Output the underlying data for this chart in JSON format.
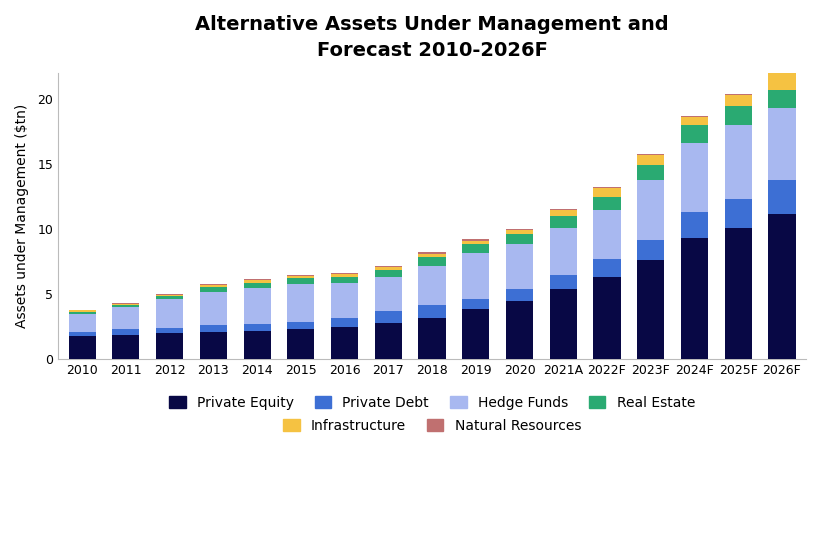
{
  "title": "Alternative Assets Under Management and\nForecast 2010-2026F",
  "ylabel": "Assets under Management ($tn)",
  "categories": [
    "2010",
    "2011",
    "2012",
    "2013",
    "2014",
    "2015",
    "2016",
    "2017",
    "2018",
    "2019",
    "2020",
    "2021A",
    "2022F",
    "2023F",
    "2024F",
    "2025F",
    "2026F"
  ],
  "series": {
    "Private Equity": [
      1.8,
      1.9,
      2.0,
      2.1,
      2.2,
      2.3,
      2.5,
      2.8,
      3.2,
      3.9,
      4.5,
      5.4,
      6.3,
      7.6,
      9.3,
      10.1,
      11.2
    ],
    "Private Debt": [
      0.3,
      0.4,
      0.4,
      0.5,
      0.5,
      0.6,
      0.7,
      0.9,
      1.0,
      0.7,
      0.9,
      1.1,
      1.4,
      1.6,
      2.0,
      2.2,
      2.6
    ],
    "Hedge Funds": [
      1.4,
      1.7,
      2.2,
      2.6,
      2.8,
      2.9,
      2.7,
      2.6,
      3.0,
      3.6,
      3.5,
      3.6,
      3.8,
      4.6,
      5.3,
      5.7,
      5.5
    ],
    "Real Estate": [
      0.15,
      0.18,
      0.25,
      0.35,
      0.4,
      0.45,
      0.45,
      0.55,
      0.65,
      0.65,
      0.75,
      0.9,
      1.0,
      1.1,
      1.4,
      1.5,
      1.4
    ],
    "Infrastructure": [
      0.1,
      0.1,
      0.12,
      0.15,
      0.18,
      0.18,
      0.2,
      0.25,
      0.28,
      0.28,
      0.3,
      0.5,
      0.7,
      0.8,
      0.65,
      0.8,
      1.6
    ],
    "Natural Resources": [
      0.05,
      0.07,
      0.07,
      0.07,
      0.07,
      0.07,
      0.07,
      0.08,
      0.08,
      0.08,
      0.08,
      0.08,
      0.08,
      0.08,
      0.08,
      0.1,
      0.1
    ]
  },
  "colors": {
    "Private Equity": "#080845",
    "Private Debt": "#3d6fd4",
    "Hedge Funds": "#a8b8f0",
    "Real Estate": "#2aaa72",
    "Infrastructure": "#f5c242",
    "Natural Resources": "#c07070"
  },
  "ylim": [
    0,
    22
  ],
  "yticks": [
    0,
    5,
    10,
    15,
    20
  ],
  "background_color": "#ffffff",
  "title_fontsize": 14,
  "legend_fontsize": 10,
  "axis_label_fontsize": 10
}
